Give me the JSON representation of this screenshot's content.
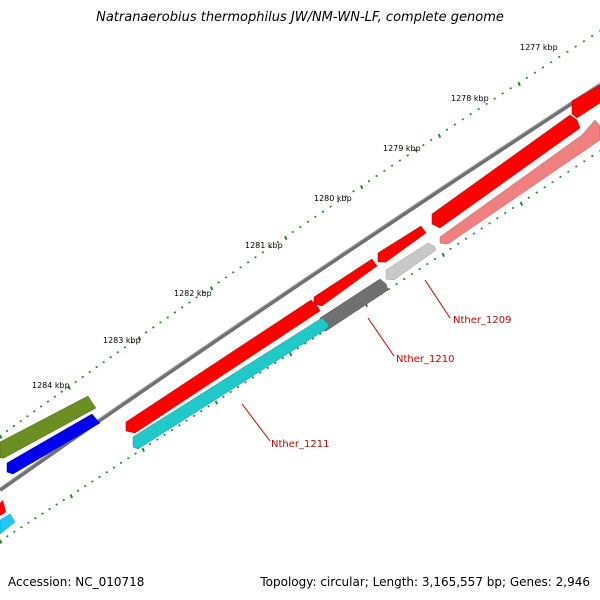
{
  "title": "Natranaerobius thermophilus JW/NM-WN-LF, complete genome",
  "footer": {
    "accession": "Accession: NC_010718",
    "topology": "Topology: circular; Length: 3,165,557 bp; Genes: 2,946"
  },
  "ruler_labels": [
    "1277 kbp",
    "1278 kbp",
    "1279 kbp",
    "1280 kbp",
    "1281 kbp",
    "1282 kbp",
    "1283 kbp",
    "1284 kbp"
  ],
  "gene_labels": [
    "Nther_1209",
    "Nther_1210",
    "Nther_1211"
  ],
  "colors": {
    "backbone": "#707070",
    "cds_red": "#ff0000",
    "cds_light_red": "#f08080",
    "cds_cyan": "#20c8c8",
    "cds_gray": "#707070",
    "cds_light_gray": "#c0c0c0",
    "cds_olive": "#6b8e23",
    "cds_blue": "#0000ee",
    "tick": "#228b22",
    "label_red": "#cc0000"
  }
}
